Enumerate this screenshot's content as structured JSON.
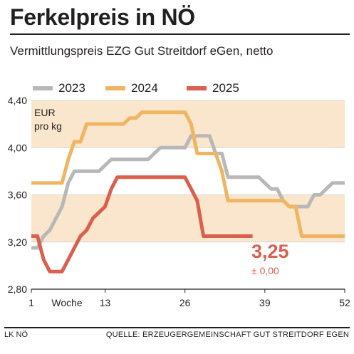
{
  "header": {
    "title": "Ferkelpreis in NÖ",
    "subtitle": "Vermittlungspreis EZG Gut Streitdorf eGen, netto"
  },
  "unit_line1": "EUR",
  "unit_line2": "pro kg",
  "annotation": {
    "latest_value": "3,25",
    "change": "± 0,00"
  },
  "footer": {
    "left": "LK NÖ",
    "right": "QUELLE: ERZEUGERGEMEINSCHAFT GUT STREITDORF EGEN"
  },
  "chart_data": {
    "type": "line",
    "title": "Ferkelpreis in NÖ",
    "subtitle": "Vermittlungspreis EZG Gut Streitdorf eGen, netto",
    "xlabel": "Woche",
    "ylabel": "EUR pro kg",
    "xlim": [
      1,
      52
    ],
    "ylim": [
      2.8,
      4.4
    ],
    "x_ticks": [
      1,
      13,
      26,
      39,
      52
    ],
    "x_tick_labels": [
      "1",
      "13",
      "26",
      "39",
      "52"
    ],
    "y_ticks": [
      2.8,
      3.2,
      3.6,
      4.0,
      4.4
    ],
    "y_tick_labels": [
      "2,80",
      "3,20",
      "3,60",
      "4,00",
      "4,40"
    ],
    "bands": [
      [
        3.2,
        3.6
      ],
      [
        4.0,
        4.4
      ]
    ],
    "band_color": "#f9e6cc",
    "legend_position": "top",
    "series": [
      {
        "name": "2023",
        "color": "#b9b8b8",
        "points": [
          [
            1,
            3.15
          ],
          [
            2,
            3.15
          ],
          [
            3,
            3.25
          ],
          [
            4,
            3.3
          ],
          [
            5,
            3.4
          ],
          [
            6,
            3.5
          ],
          [
            7,
            3.7
          ],
          [
            8,
            3.8
          ],
          [
            9,
            3.8
          ],
          [
            10,
            3.8
          ],
          [
            11,
            3.8
          ],
          [
            12,
            3.8
          ],
          [
            13,
            3.85
          ],
          [
            14,
            3.9
          ],
          [
            15,
            3.9
          ],
          [
            16,
            3.9
          ],
          [
            17,
            3.9
          ],
          [
            18,
            3.9
          ],
          [
            19,
            3.9
          ],
          [
            20,
            3.9
          ],
          [
            21,
            3.95
          ],
          [
            22,
            4.0
          ],
          [
            23,
            4.0
          ],
          [
            24,
            4.0
          ],
          [
            25,
            4.0
          ],
          [
            26,
            4.0
          ],
          [
            27,
            4.1
          ],
          [
            28,
            4.1
          ],
          [
            29,
            4.1
          ],
          [
            30,
            4.1
          ],
          [
            31,
            3.95
          ],
          [
            32,
            3.95
          ],
          [
            33,
            3.75
          ],
          [
            34,
            3.75
          ],
          [
            35,
            3.75
          ],
          [
            36,
            3.75
          ],
          [
            37,
            3.75
          ],
          [
            38,
            3.75
          ],
          [
            39,
            3.7
          ],
          [
            40,
            3.65
          ],
          [
            41,
            3.65
          ],
          [
            42,
            3.55
          ],
          [
            43,
            3.5
          ],
          [
            44,
            3.5
          ],
          [
            45,
            3.5
          ],
          [
            46,
            3.5
          ],
          [
            47,
            3.6
          ],
          [
            48,
            3.6
          ],
          [
            49,
            3.65
          ],
          [
            50,
            3.7
          ],
          [
            51,
            3.7
          ],
          [
            52,
            3.7
          ]
        ]
      },
      {
        "name": "2024",
        "color": "#f0b562",
        "points": [
          [
            1,
            3.7
          ],
          [
            2,
            3.7
          ],
          [
            3,
            3.7
          ],
          [
            4,
            3.7
          ],
          [
            5,
            3.7
          ],
          [
            6,
            3.7
          ],
          [
            7,
            3.9
          ],
          [
            8,
            4.05
          ],
          [
            9,
            4.05
          ],
          [
            10,
            4.2
          ],
          [
            11,
            4.2
          ],
          [
            12,
            4.2
          ],
          [
            13,
            4.2
          ],
          [
            14,
            4.2
          ],
          [
            15,
            4.2
          ],
          [
            16,
            4.2
          ],
          [
            17,
            4.25
          ],
          [
            18,
            4.25
          ],
          [
            19,
            4.3
          ],
          [
            20,
            4.3
          ],
          [
            21,
            4.3
          ],
          [
            22,
            4.3
          ],
          [
            23,
            4.3
          ],
          [
            24,
            4.3
          ],
          [
            25,
            4.3
          ],
          [
            26,
            4.3
          ],
          [
            27,
            4.2
          ],
          [
            28,
            3.95
          ],
          [
            29,
            3.95
          ],
          [
            30,
            3.95
          ],
          [
            31,
            3.95
          ],
          [
            32,
            3.8
          ],
          [
            33,
            3.55
          ],
          [
            34,
            3.55
          ],
          [
            35,
            3.55
          ],
          [
            36,
            3.55
          ],
          [
            37,
            3.55
          ],
          [
            38,
            3.55
          ],
          [
            39,
            3.55
          ],
          [
            40,
            3.55
          ],
          [
            41,
            3.55
          ],
          [
            42,
            3.55
          ],
          [
            43,
            3.5
          ],
          [
            44,
            3.5
          ],
          [
            45,
            3.25
          ],
          [
            46,
            3.25
          ],
          [
            47,
            3.25
          ],
          [
            48,
            3.25
          ],
          [
            49,
            3.25
          ],
          [
            50,
            3.25
          ],
          [
            51,
            3.25
          ],
          [
            52,
            3.25
          ]
        ]
      },
      {
        "name": "2025",
        "color": "#d95f4e",
        "points": [
          [
            1,
            3.25
          ],
          [
            2,
            3.25
          ],
          [
            3,
            3.05
          ],
          [
            4,
            2.95
          ],
          [
            5,
            2.95
          ],
          [
            6,
            2.95
          ],
          [
            7,
            3.05
          ],
          [
            8,
            3.15
          ],
          [
            9,
            3.25
          ],
          [
            10,
            3.3
          ],
          [
            11,
            3.4
          ],
          [
            12,
            3.45
          ],
          [
            13,
            3.5
          ],
          [
            14,
            3.65
          ],
          [
            15,
            3.75
          ],
          [
            16,
            3.75
          ],
          [
            17,
            3.75
          ],
          [
            18,
            3.75
          ],
          [
            19,
            3.75
          ],
          [
            20,
            3.75
          ],
          [
            21,
            3.75
          ],
          [
            22,
            3.75
          ],
          [
            23,
            3.75
          ],
          [
            24,
            3.75
          ],
          [
            25,
            3.75
          ],
          [
            26,
            3.75
          ],
          [
            27,
            3.65
          ],
          [
            28,
            3.55
          ],
          [
            29,
            3.25
          ],
          [
            30,
            3.25
          ],
          [
            31,
            3.25
          ],
          [
            32,
            3.25
          ],
          [
            33,
            3.25
          ],
          [
            34,
            3.25
          ],
          [
            35,
            3.25
          ],
          [
            36,
            3.25
          ],
          [
            37,
            3.25
          ]
        ]
      }
    ]
  }
}
